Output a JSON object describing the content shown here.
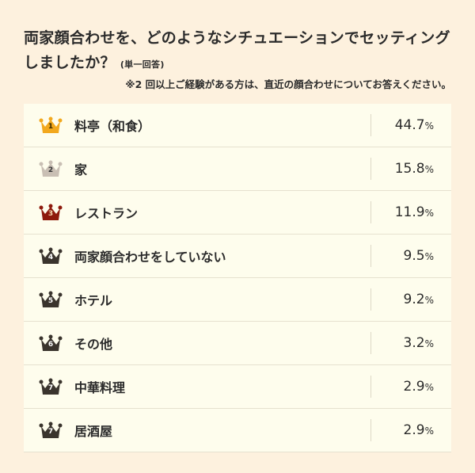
{
  "title": "両家顔合わせを、どのようなシチュエーションでセッティングしましたか？",
  "subtitle": "(単一回答)",
  "note": "※2 回以上ご経験がある方は、直近の顔合わせについてお答えください。",
  "chart_data": {
    "type": "table",
    "unit": "%",
    "rows": [
      {
        "rank": "1",
        "label": "料亭（和食）",
        "value": "44.7",
        "color": "#f2a81d",
        "rank_color": "#3a2a00"
      },
      {
        "rank": "2",
        "label": "家",
        "value": "15.8",
        "color": "#c9bfb4",
        "rank_color": "#333333"
      },
      {
        "rank": "3",
        "label": "レストラン",
        "value": "11.9",
        "color": "#8e1a0c",
        "rank_color": "#f5d9b0"
      },
      {
        "rank": "4",
        "label": "両家顔合わせをしていない",
        "value": "9.5",
        "color": "#3a342d",
        "rank_color": "#ffffff"
      },
      {
        "rank": "5",
        "label": "ホテル",
        "value": "9.2",
        "color": "#3a342d",
        "rank_color": "#ffffff"
      },
      {
        "rank": "6",
        "label": "その他",
        "value": "3.2",
        "color": "#3a342d",
        "rank_color": "#ffffff"
      },
      {
        "rank": "7",
        "label": "中華料理",
        "value": "2.9",
        "color": "#3a342d",
        "rank_color": "#ffffff"
      },
      {
        "rank": "7",
        "label": "居酒屋",
        "value": "2.9",
        "color": "#3a342d",
        "rank_color": "#ffffff"
      }
    ]
  }
}
